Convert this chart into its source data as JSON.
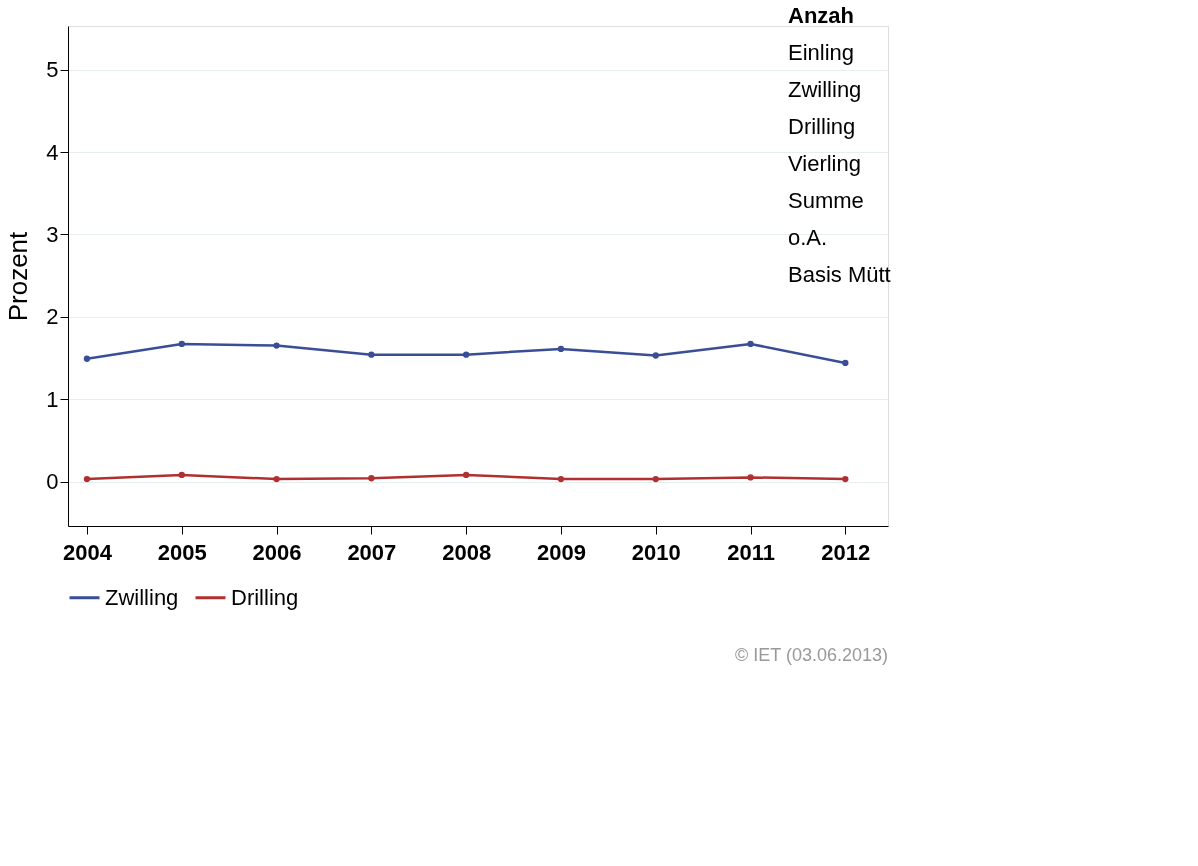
{
  "chart_data": {
    "type": "line",
    "ylabel": "Prozent",
    "categories": [
      "2004",
      "2005",
      "2006",
      "2007",
      "2008",
      "2009",
      "2010",
      "2011",
      "2012"
    ],
    "series": [
      {
        "name": "Zwilling",
        "color": "#3a4e96",
        "values": [
          1.49,
          1.67,
          1.65,
          1.54,
          1.54,
          1.61,
          1.53,
          1.67,
          1.44
        ]
      },
      {
        "name": "Drilling",
        "color": "#b03030",
        "values": [
          0.03,
          0.08,
          0.03,
          0.04,
          0.08,
          0.03,
          0.03,
          0.05,
          0.03
        ]
      }
    ],
    "ylim": [
      -0.54,
      5.53
    ],
    "yticks": [
      0,
      1,
      2,
      3,
      4,
      5
    ],
    "grid": "y",
    "legend": "bottom",
    "marker": "circle",
    "line_style": "solid",
    "annotations": [
      "Anzah",
      "Einling",
      "Zwilling",
      "Drilling",
      "Vierling",
      "Summe",
      "o.A.",
      "Basis Mütt",
      "© IET (03.06.2013)"
    ]
  }
}
